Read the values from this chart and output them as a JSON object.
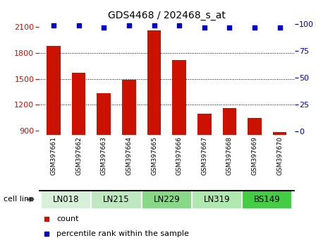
{
  "title": "GDS4468 / 202468_s_at",
  "samples": [
    "GSM397661",
    "GSM397662",
    "GSM397663",
    "GSM397664",
    "GSM397665",
    "GSM397666",
    "GSM397667",
    "GSM397668",
    "GSM397669",
    "GSM397670"
  ],
  "counts": [
    1880,
    1570,
    1330,
    1490,
    2060,
    1720,
    1100,
    1160,
    1050,
    880
  ],
  "percentile_ranks": [
    99,
    99,
    97,
    99,
    99,
    99,
    97,
    97,
    97,
    97
  ],
  "cell_lines": [
    {
      "label": "LN018",
      "start": 0,
      "end": 1,
      "color": "#d8f0d8"
    },
    {
      "label": "LN215",
      "start": 2,
      "end": 3,
      "color": "#c0e8c0"
    },
    {
      "label": "LN229",
      "start": 4,
      "end": 5,
      "color": "#88d888"
    },
    {
      "label": "LN319",
      "start": 6,
      "end": 7,
      "color": "#b0e8b0"
    },
    {
      "label": "BS149",
      "start": 8,
      "end": 9,
      "color": "#44cc44"
    }
  ],
  "ylim_left": [
    850,
    2150
  ],
  "ylim_right": [
    -3.5,
    101.5
  ],
  "yticks_left": [
    900,
    1200,
    1500,
    1800,
    2100
  ],
  "yticks_right": [
    0,
    25,
    50,
    75,
    100
  ],
  "bar_color": "#cc1100",
  "dot_color": "#0000cc",
  "bg_color": "#ffffff",
  "sample_bg_color": "#c0c0c0",
  "grid_lines": [
    1200,
    1500,
    1800
  ],
  "cell_line_label": "cell line"
}
